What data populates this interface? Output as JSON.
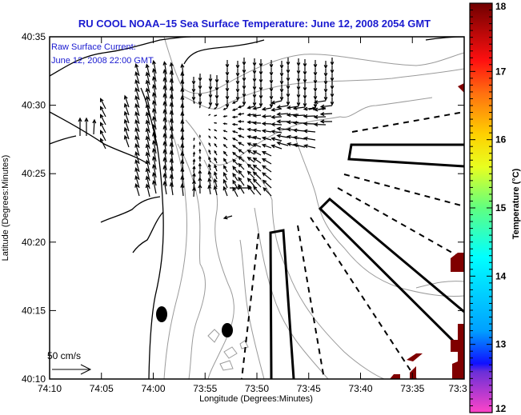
{
  "chart_data": {
    "type": "map",
    "title": "RU COOL  NOAA–15  Sea Surface Temperature:  June 12, 2008 2054 GMT",
    "annotation": {
      "line1": "Raw Surface Current:",
      "line2": "June 12, 2008 22:00 GMT"
    },
    "xlabel": "Longitude (Degrees:Minutes)",
    "ylabel": "Latitude (Degrees:Minutes)",
    "x_ticks": [
      "74:10",
      "74:05",
      "74:00",
      "73:55",
      "73:50",
      "73:45",
      "73:40",
      "73:35",
      "73:3"
    ],
    "y_ticks": [
      "40:35",
      "40:30",
      "40:25",
      "40:20",
      "40:15",
      "40:10"
    ],
    "xlim_minutes_west": [
      4450,
      4410
    ],
    "ylim_minutes_north": [
      2410,
      2435
    ],
    "scale_arrow_label": "50 cm/s",
    "colorbar": {
      "label": "Temperature (°C)",
      "ticks": [
        "18",
        "17",
        "16",
        "15",
        "14",
        "13",
        "12"
      ],
      "range": [
        12,
        18
      ],
      "colors": [
        "#ff44c8",
        "#6a2fd8",
        "#1010ff",
        "#00a0ff",
        "#00ffff",
        "#60ff80",
        "#e8ff20",
        "#ffd000",
        "#ff7010",
        "#ff1010",
        "#700000"
      ]
    },
    "colors": {
      "sst_pixels": "#800000",
      "coastline": "#000000",
      "bathymetry": "#999999",
      "title_text": "#1a1ad0"
    }
  }
}
